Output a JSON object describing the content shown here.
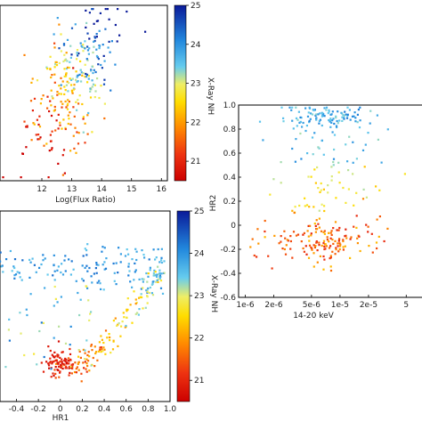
{
  "chart_data": [
    {
      "type": "scatter",
      "panel": "top-left",
      "xlabel": "Log(Flux Ratio)",
      "ylabel": "",
      "xlim": [
        10.6,
        16.2
      ],
      "ylim": [
        0,
        10
      ],
      "x_ticks": [
        "12",
        "13",
        "14",
        "15",
        "16"
      ],
      "colorbar": {
        "label": "X-Ray NH",
        "range": [
          20.5,
          25
        ],
        "ticks": [
          "21",
          "22",
          "23",
          "24",
          "25"
        ]
      },
      "grid": false,
      "points_generated": "~300 points; dense cluster around x 12.4-13.6, colored mostly orange/yellow/cyan, blue at upper right"
    },
    {
      "type": "scatter",
      "panel": "bottom-left",
      "xlabel": "HR1",
      "ylabel": "",
      "xlim": [
        -0.55,
        1.0
      ],
      "ylim": [
        0,
        10
      ],
      "x_ticks": [
        "-0.4",
        "-0.2",
        "0",
        "0.2",
        "0.4",
        "0.6",
        "0.8",
        "1.0"
      ],
      "colorbar": {
        "label": "X-Ray NH",
        "range": [
          20.5,
          25
        ],
        "ticks": [
          "21",
          "22",
          "23",
          "24",
          "25"
        ]
      },
      "grid": false
    },
    {
      "type": "scatter",
      "panel": "right",
      "xlabel": "14-20 keV",
      "ylabel": "HR2",
      "xscale": "log",
      "xlim": [
        8.5e-07,
        8e-05
      ],
      "ylim": [
        -0.6,
        1.0
      ],
      "x_ticks": [
        "1e-6",
        "2e-6",
        "5e-6",
        "1e-5",
        "2e-5",
        "5"
      ],
      "y_ticks": [
        "1.0",
        "0.8",
        "0.6",
        "0.4",
        "0.2",
        "0",
        "-0.2",
        "-0.4",
        "-0.6"
      ],
      "grid": false
    }
  ]
}
